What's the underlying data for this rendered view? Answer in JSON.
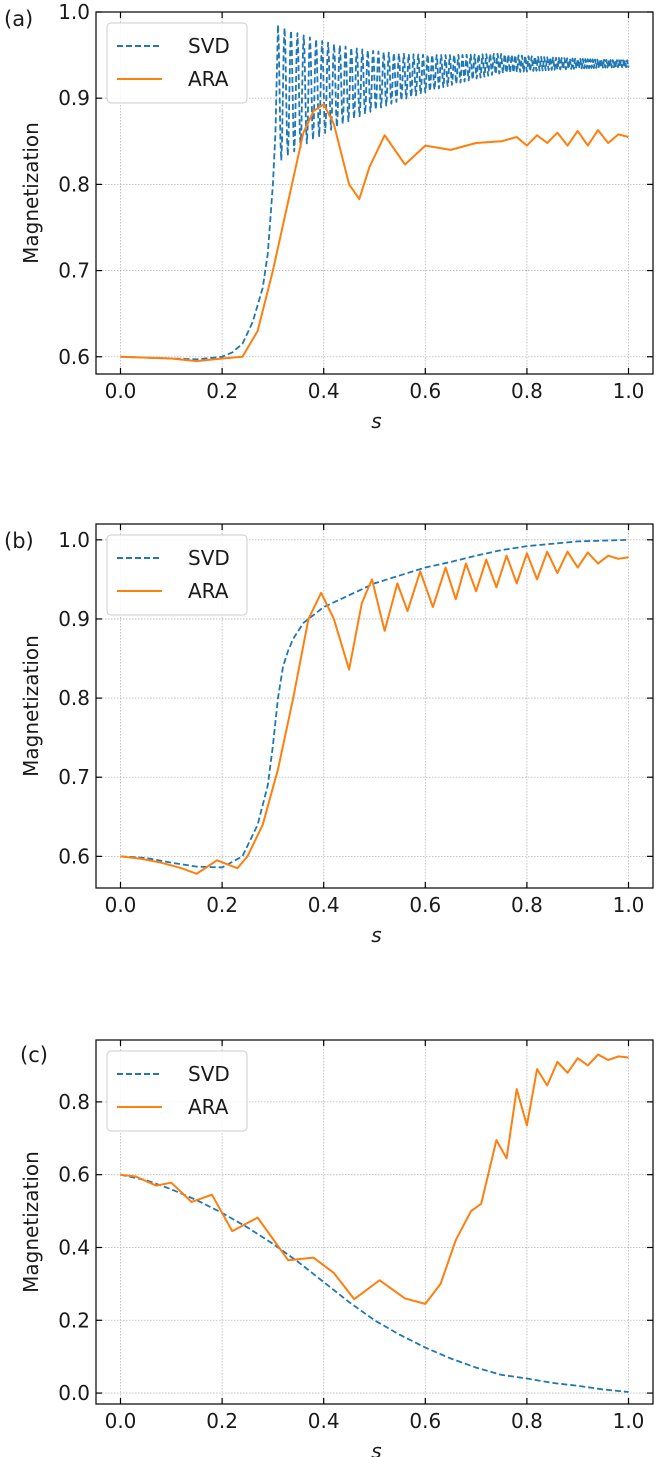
{
  "colors": {
    "svd": "#1f77b4",
    "ara": "#ff7f0e"
  },
  "chart_data": [
    {
      "type": "line",
      "panel_label": "(a)",
      "xlabel": "s",
      "ylabel": "Magnetization",
      "xlim": [
        0.0,
        1.0
      ],
      "ylim": [
        0.58,
        1.0
      ],
      "xticks": [
        0.0,
        0.2,
        0.4,
        0.6,
        0.8,
        1.0
      ],
      "xtick_labels": [
        "0.0",
        "0.2",
        "0.4",
        "0.6",
        "0.8",
        "1.0"
      ],
      "yticks": [
        0.6,
        0.7,
        0.8,
        0.9,
        1.0
      ],
      "ytick_labels": [
        "0.6",
        "0.7",
        "0.8",
        "0.9",
        "1.0"
      ],
      "grid": true,
      "legend_position": "top-left",
      "series": [
        {
          "name": "SVD",
          "style": "dashed",
          "color": "#1f77b4",
          "x": [
            0.0,
            0.05,
            0.1,
            0.15,
            0.2,
            0.22,
            0.24,
            0.26,
            0.28,
            0.29,
            0.3,
            0.305,
            0.31,
            0.32,
            0.33,
            0.34,
            0.35,
            0.36,
            0.37,
            0.38,
            0.39,
            0.4,
            0.42,
            0.45,
            0.5,
            0.55,
            0.6,
            0.65,
            0.7,
            0.75,
            0.78,
            0.8,
            0.85,
            0.9,
            0.95,
            1.0
          ],
          "y": [
            0.6,
            0.599,
            0.598,
            0.597,
            0.6,
            0.605,
            0.615,
            0.64,
            0.68,
            0.72,
            0.8,
            0.86,
            0.98,
            0.81,
            0.98,
            0.85,
            0.97,
            0.86,
            0.965,
            0.87,
            0.96,
            0.875,
            0.955,
            0.885,
            0.95,
            0.9,
            0.945,
            0.91,
            0.94,
            0.92,
            0.95,
            0.925,
            0.94,
            0.935,
            0.94,
            0.938
          ],
          "oscillation": {
            "from": 0.31,
            "to": 0.98,
            "amp_start": 0.08,
            "amp_end": 0.004,
            "period_start": 0.013,
            "period_end": 0.004
          }
        },
        {
          "name": "ARA",
          "style": "solid",
          "color": "#ff7f0e",
          "x": [
            0.0,
            0.05,
            0.1,
            0.15,
            0.2,
            0.24,
            0.27,
            0.3,
            0.33,
            0.36,
            0.38,
            0.4,
            0.42,
            0.45,
            0.47,
            0.49,
            0.52,
            0.56,
            0.6,
            0.65,
            0.7,
            0.75,
            0.78,
            0.8,
            0.82,
            0.84,
            0.86,
            0.88,
            0.9,
            0.92,
            0.94,
            0.96,
            0.98,
            1.0
          ],
          "y": [
            0.6,
            0.599,
            0.598,
            0.595,
            0.598,
            0.6,
            0.63,
            0.7,
            0.78,
            0.86,
            0.885,
            0.893,
            0.87,
            0.8,
            0.783,
            0.82,
            0.857,
            0.823,
            0.845,
            0.84,
            0.848,
            0.85,
            0.855,
            0.845,
            0.857,
            0.848,
            0.86,
            0.845,
            0.862,
            0.845,
            0.863,
            0.848,
            0.858,
            0.855
          ]
        }
      ]
    },
    {
      "type": "line",
      "panel_label": "(b)",
      "xlabel": "s",
      "ylabel": "Magnetization",
      "xlim": [
        0.0,
        1.0
      ],
      "ylim": [
        0.56,
        1.02
      ],
      "xticks": [
        0.0,
        0.2,
        0.4,
        0.6,
        0.8,
        1.0
      ],
      "xtick_labels": [
        "0.0",
        "0.2",
        "0.4",
        "0.6",
        "0.8",
        "1.0"
      ],
      "yticks": [
        0.6,
        0.7,
        0.8,
        0.9,
        1.0
      ],
      "ytick_labels": [
        "0.6",
        "0.7",
        "0.8",
        "0.9",
        "1.0"
      ],
      "grid": true,
      "legend_position": "top-left",
      "series": [
        {
          "name": "SVD",
          "style": "dashed",
          "color": "#1f77b4",
          "x": [
            0.0,
            0.05,
            0.1,
            0.15,
            0.2,
            0.24,
            0.27,
            0.29,
            0.3,
            0.31,
            0.32,
            0.33,
            0.34,
            0.35,
            0.36,
            0.38,
            0.4,
            0.45,
            0.5,
            0.55,
            0.6,
            0.65,
            0.7,
            0.75,
            0.8,
            0.85,
            0.9,
            0.95,
            1.0
          ],
          "y": [
            0.6,
            0.598,
            0.592,
            0.587,
            0.586,
            0.6,
            0.64,
            0.69,
            0.74,
            0.8,
            0.84,
            0.86,
            0.875,
            0.885,
            0.895,
            0.905,
            0.915,
            0.93,
            0.945,
            0.955,
            0.965,
            0.972,
            0.98,
            0.987,
            0.992,
            0.995,
            0.998,
            0.999,
            1.0
          ]
        },
        {
          "name": "ARA",
          "style": "solid",
          "color": "#ff7f0e",
          "x": [
            0.0,
            0.04,
            0.08,
            0.12,
            0.15,
            0.19,
            0.23,
            0.25,
            0.28,
            0.31,
            0.34,
            0.37,
            0.395,
            0.42,
            0.45,
            0.475,
            0.495,
            0.52,
            0.545,
            0.565,
            0.59,
            0.615,
            0.64,
            0.66,
            0.68,
            0.7,
            0.72,
            0.74,
            0.76,
            0.78,
            0.8,
            0.82,
            0.84,
            0.86,
            0.88,
            0.9,
            0.92,
            0.94,
            0.96,
            0.98,
            1.0
          ],
          "y": [
            0.6,
            0.597,
            0.592,
            0.585,
            0.578,
            0.595,
            0.585,
            0.6,
            0.64,
            0.71,
            0.8,
            0.9,
            0.933,
            0.9,
            0.836,
            0.92,
            0.95,
            0.885,
            0.945,
            0.91,
            0.96,
            0.915,
            0.965,
            0.925,
            0.97,
            0.935,
            0.975,
            0.94,
            0.98,
            0.945,
            0.983,
            0.95,
            0.985,
            0.958,
            0.985,
            0.965,
            0.984,
            0.97,
            0.98,
            0.976,
            0.978
          ]
        }
      ]
    },
    {
      "type": "line",
      "panel_label": "(c)",
      "xlabel": "s",
      "ylabel": "Magnetization",
      "xlim": [
        0.0,
        1.0
      ],
      "ylim": [
        -0.03,
        0.97
      ],
      "xticks": [
        0.0,
        0.2,
        0.4,
        0.6,
        0.8,
        1.0
      ],
      "xtick_labels": [
        "0.0",
        "0.2",
        "0.4",
        "0.6",
        "0.8",
        "1.0"
      ],
      "yticks": [
        0.0,
        0.2,
        0.4,
        0.6,
        0.8
      ],
      "ytick_labels": [
        "0.0",
        "0.2",
        "0.4",
        "0.6",
        "0.8"
      ],
      "grid": true,
      "legend_position": "top-left",
      "series": [
        {
          "name": "SVD",
          "style": "dashed",
          "color": "#1f77b4",
          "x": [
            0.0,
            0.05,
            0.1,
            0.15,
            0.2,
            0.25,
            0.3,
            0.35,
            0.4,
            0.45,
            0.5,
            0.55,
            0.6,
            0.65,
            0.7,
            0.75,
            0.8,
            0.85,
            0.9,
            0.95,
            1.0
          ],
          "y": [
            0.6,
            0.585,
            0.56,
            0.53,
            0.495,
            0.455,
            0.41,
            0.36,
            0.305,
            0.25,
            0.2,
            0.16,
            0.125,
            0.095,
            0.07,
            0.05,
            0.04,
            0.028,
            0.02,
            0.01,
            0.003
          ]
        },
        {
          "name": "ARA",
          "style": "solid",
          "color": "#ff7f0e",
          "x": [
            0.0,
            0.03,
            0.07,
            0.1,
            0.14,
            0.18,
            0.22,
            0.27,
            0.33,
            0.38,
            0.42,
            0.46,
            0.51,
            0.56,
            0.6,
            0.63,
            0.66,
            0.69,
            0.71,
            0.74,
            0.76,
            0.78,
            0.8,
            0.82,
            0.84,
            0.86,
            0.88,
            0.9,
            0.92,
            0.94,
            0.96,
            0.98,
            1.0
          ],
          "y": [
            0.6,
            0.595,
            0.57,
            0.578,
            0.525,
            0.545,
            0.445,
            0.482,
            0.365,
            0.372,
            0.33,
            0.258,
            0.31,
            0.26,
            0.245,
            0.3,
            0.42,
            0.5,
            0.52,
            0.695,
            0.645,
            0.835,
            0.735,
            0.89,
            0.845,
            0.91,
            0.88,
            0.92,
            0.9,
            0.93,
            0.915,
            0.925,
            0.922
          ]
        }
      ]
    }
  ]
}
